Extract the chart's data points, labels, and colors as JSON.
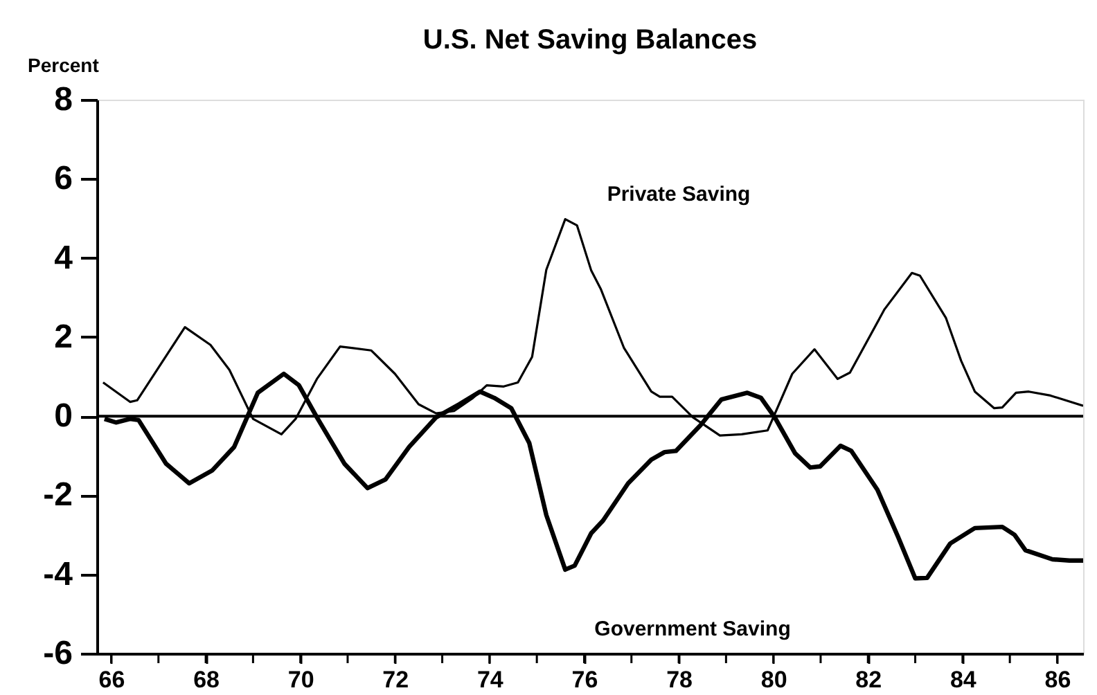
{
  "chart_data": {
    "type": "line",
    "title": "U.S. Net Saving Balances",
    "ylabel": "Percent",
    "xlim": [
      65.7,
      86.55
    ],
    "xticks": [
      66,
      {
        "value": 67,
        "label": null
      },
      68,
      {
        "value": 69,
        "label": null
      },
      70,
      {
        "value": 71,
        "label": null
      },
      72,
      {
        "value": 73,
        "label": null
      },
      74,
      {
        "value": 75,
        "label": null
      },
      76,
      {
        "value": 77,
        "label": null
      },
      78,
      {
        "value": 79,
        "label": null
      },
      80,
      {
        "value": 81,
        "label": null
      },
      82,
      {
        "value": 83,
        "label": null
      },
      84,
      {
        "value": 85,
        "label": null
      },
      86
    ],
    "ylim": [
      -6,
      8
    ],
    "yticks": [
      -6,
      -4,
      -2,
      0,
      2,
      4,
      6,
      8
    ],
    "grid": false,
    "legend": false,
    "marker": "none",
    "line_style": "solid",
    "ref_lines": [
      {
        "axis": "y",
        "value": 0,
        "color": "#000000"
      }
    ],
    "series": [
      {
        "name": "Private Saving",
        "color": "#000000",
        "x": [
          65.83,
          66.4,
          66.55,
          67.56,
          68.1,
          68.5,
          69.0,
          69.6,
          69.9,
          70.35,
          70.84,
          71.5,
          72.0,
          72.5,
          72.87,
          73.25,
          73.65,
          73.94,
          74.3,
          74.6,
          74.9,
          75.2,
          75.6,
          75.85,
          76.15,
          76.35,
          76.84,
          77.42,
          77.6,
          77.86,
          78.3,
          78.87,
          79.33,
          79.88,
          80.4,
          80.87,
          81.36,
          81.62,
          82.35,
          82.93,
          83.1,
          83.65,
          83.97,
          84.26,
          84.67,
          84.84,
          85.13,
          85.4,
          85.86,
          86.55
        ],
        "values": [
          0.85,
          0.36,
          0.4,
          2.25,
          1.8,
          1.17,
          -0.07,
          -0.46,
          -0.07,
          0.94,
          1.76,
          1.66,
          1.07,
          0.3,
          0.07,
          0.13,
          0.46,
          0.78,
          0.75,
          0.85,
          1.5,
          3.7,
          4.98,
          4.82,
          3.68,
          3.22,
          1.73,
          0.62,
          0.49,
          0.49,
          -0.03,
          -0.49,
          -0.46,
          -0.36,
          1.07,
          1.69,
          0.94,
          1.1,
          2.7,
          3.62,
          3.55,
          2.48,
          1.4,
          0.62,
          0.2,
          0.22,
          0.59,
          0.62,
          0.52,
          0.26
        ]
      },
      {
        "name": "Government Saving",
        "color": "#000000",
        "x": [
          65.86,
          66.1,
          66.4,
          66.58,
          67.16,
          67.65,
          68.14,
          68.6,
          69.1,
          69.65,
          69.97,
          70.35,
          70.93,
          71.42,
          71.8,
          72.3,
          72.87,
          73.36,
          73.8,
          74.1,
          74.46,
          74.84,
          75.2,
          75.6,
          75.8,
          76.15,
          76.4,
          76.93,
          77.42,
          77.7,
          77.94,
          78.46,
          78.9,
          79.45,
          79.74,
          80.03,
          80.46,
          80.78,
          80.99,
          81.42,
          81.65,
          82.2,
          82.64,
          83.0,
          83.25,
          83.74,
          84.26,
          84.84,
          85.1,
          85.33,
          85.9,
          86.26,
          86.55
        ],
        "values": [
          -0.07,
          -0.16,
          -0.07,
          -0.1,
          -1.2,
          -1.7,
          -1.37,
          -0.78,
          0.59,
          1.07,
          0.78,
          -0.03,
          -1.2,
          -1.82,
          -1.6,
          -0.78,
          -0.03,
          0.3,
          0.62,
          0.46,
          0.2,
          -0.68,
          -2.5,
          -3.88,
          -3.78,
          -2.96,
          -2.64,
          -1.7,
          -1.1,
          -0.91,
          -0.88,
          -0.23,
          0.42,
          0.59,
          0.46,
          -0.03,
          -0.94,
          -1.3,
          -1.27,
          -0.75,
          -0.88,
          -1.86,
          -3.06,
          -4.1,
          -4.09,
          -3.22,
          -2.83,
          -2.8,
          -3.0,
          -3.39,
          -3.62,
          -3.65,
          -3.65
        ]
      }
    ]
  }
}
